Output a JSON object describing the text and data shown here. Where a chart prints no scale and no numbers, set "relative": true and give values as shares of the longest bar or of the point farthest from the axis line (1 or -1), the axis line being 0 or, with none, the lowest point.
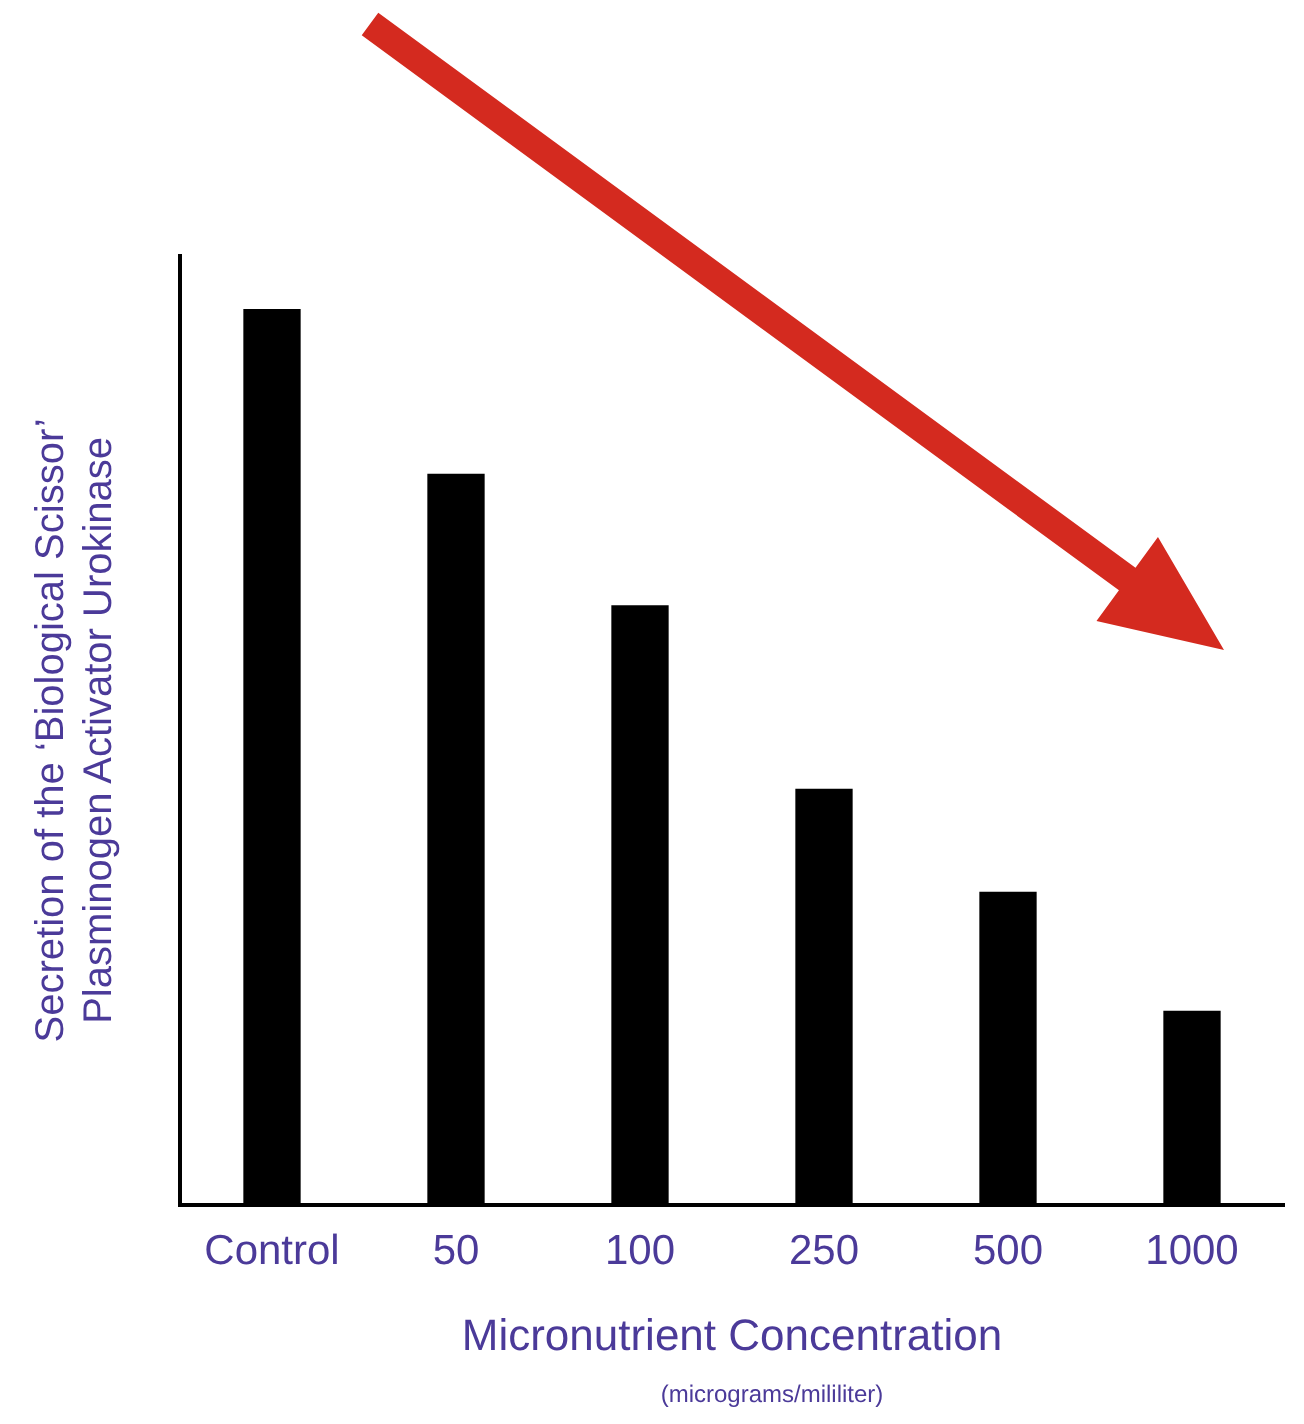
{
  "chart_data": {
    "type": "bar",
    "relative": true,
    "xlabel": "Micronutrient Concentration",
    "ylabel": "Secretion of the ‘Biological Scissor’ Plasminogen Activator Urokinase",
    "categories": [
      "Control",
      "50",
      "100",
      "250",
      "500",
      "1000"
    ],
    "values": [
      1,
      0.816,
      0.669,
      0.464,
      0.349,
      0.216
    ],
    "color": "#000000",
    "grid": false,
    "legend": false,
    "tick_labels": "x",
    "annotations": [
      "(micrograms/mililiter)"
    ]
  }
}
